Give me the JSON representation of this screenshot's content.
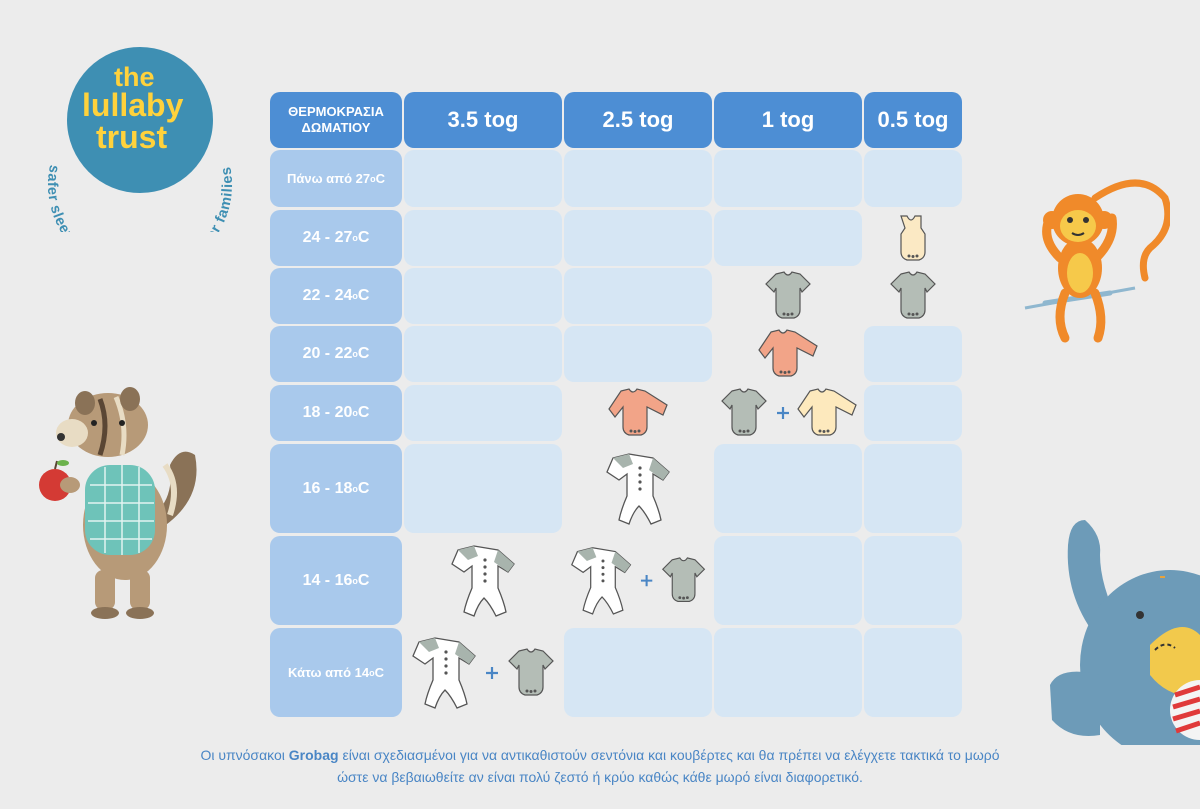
{
  "logo": {
    "line1": "the",
    "line2": "lullaby",
    "line3": "trust",
    "ring_text": "safer sleep for babies – support for families",
    "colors": {
      "circle": "#3e8fb3",
      "wordmark": "#ffd23c",
      "ring_text": "#3e8fb3"
    }
  },
  "table": {
    "room_header_line1": "ΘΕΡΜΟΚΡΑΣΙΑ",
    "room_header_line2": "ΔΩΜΑΤΙΟΥ",
    "tog_columns": [
      "3.5 tog",
      "2.5 tog",
      "1 tog",
      "0.5 tog"
    ],
    "rows": [
      {
        "label_main": "Πάνω από 27",
        "label_sup": "o",
        "label_unit": "C",
        "cells": [
          [],
          [],
          [],
          []
        ]
      },
      {
        "label_main": "24 - 27",
        "label_sup": "o",
        "label_unit": "C",
        "cells": [
          [],
          [],
          [],
          [
            "vest"
          ]
        ]
      },
      {
        "label_main": "22 - 24",
        "label_sup": "o",
        "label_unit": "C",
        "cells": [
          [],
          [],
          [
            "bodysuit-short"
          ],
          [
            "bodysuit-short"
          ]
        ]
      },
      {
        "label_main": "20 - 22",
        "label_sup": "o",
        "label_unit": "C",
        "cells": [
          [],
          [],
          [
            "bodysuit-long"
          ],
          []
        ]
      },
      {
        "label_main": "18 - 20",
        "label_sup": "o",
        "label_unit": "C",
        "cells": [
          [],
          [
            "bodysuit-long"
          ],
          [
            "bodysuit-short",
            "plus",
            "bodysuit-long-cream"
          ],
          []
        ]
      },
      {
        "label_main": "16 - 18",
        "label_sup": "o",
        "label_unit": "C",
        "cells": [
          [],
          [
            "sleepsuit"
          ],
          [],
          []
        ]
      },
      {
        "label_main": "14 - 16",
        "label_sup": "o",
        "label_unit": "C",
        "cells": [
          [
            "sleepsuit"
          ],
          [
            "sleepsuit",
            "plus",
            "bodysuit-short"
          ],
          [],
          []
        ]
      },
      {
        "label_main": "Κάτω από 14",
        "label_sup": "o",
        "label_unit": "C",
        "cells": [
          [
            "sleepsuit",
            "plus",
            "bodysuit-short"
          ],
          [],
          [],
          []
        ]
      }
    ],
    "colors": {
      "header": "#4d8ed4",
      "row_label": "#a9c9ec",
      "empty_cell": "#d6e6f4",
      "plus": "#4a86c5"
    }
  },
  "clothing_icons": {
    "vest": "vest-icon",
    "bodysuit-short": "short-sleeve-bodysuit-icon",
    "bodysuit-long": "long-sleeve-bodysuit-icon",
    "bodysuit-long-cream": "long-sleeve-bodysuit-cream-icon",
    "sleepsuit": "sleepsuit-icon",
    "colors": {
      "vest": "#fbe9c4",
      "short": "#b4bdb6",
      "long": "#f2a488",
      "cream": "#fde9bd",
      "sleepsuit_body": "#ffffff",
      "sleepsuit_sleeve": "#a8b4ad"
    }
  },
  "footnote": {
    "before": "Οι υπνόσακοι ",
    "brand": "Grobag",
    "after": " είναι σχεδιασμένοι για να αντικαθιστούν σεντόνια και κουβέρτες και θα πρέπει να ελέγχετε τακτικά το μωρό",
    "line2": "ώστε να βεβαιωθείτε αν είναι πολύ ζεστό ή κρύο καθώς κάθε μωρό είναι διαφορετικό."
  },
  "illustrations": [
    "chipmunk-with-apple",
    "monkey-on-swing",
    "elephant"
  ]
}
